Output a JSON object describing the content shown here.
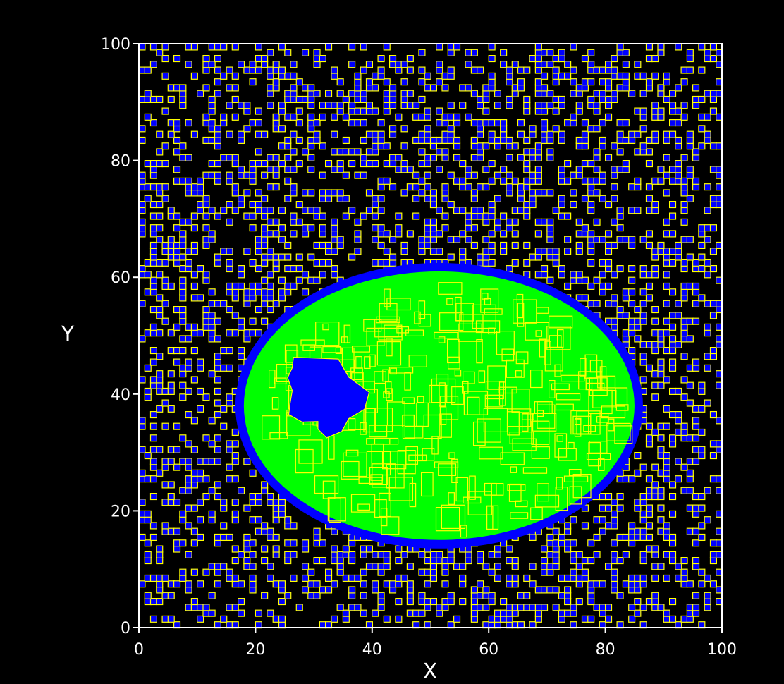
{
  "chart_data": {
    "type": "heatmap",
    "title": "",
    "xlabel": "X",
    "ylabel": "Y",
    "xlim": [
      0,
      100
    ],
    "ylim": [
      0,
      100
    ],
    "x_ticks": [
      "0",
      "20",
      "40",
      "60",
      "80",
      "100"
    ],
    "y_ticks": [
      "0",
      "20",
      "40",
      "60",
      "80",
      "100"
    ],
    "grid": false,
    "legend": "none",
    "colors": {
      "background": "#000000",
      "foreground": "#ffffff",
      "medium_cells": "#0000ff",
      "blob": "#00ff00",
      "cell_boundaries": "#ffff00"
    },
    "regions": [
      {
        "name": "blob",
        "color": "#00ff00",
        "shape": "ellipse",
        "center": [
          51.5,
          38
        ],
        "radius": [
          33.5,
          23
        ]
      },
      {
        "name": "blob-hole",
        "color": "#0000ff",
        "shape": "polygon",
        "points": [
          [
            26.5,
            46.3
          ],
          [
            34.2,
            46
          ],
          [
            36,
            42.9
          ],
          [
            39.5,
            40.3
          ],
          [
            38.7,
            37.4
          ],
          [
            36,
            35.8
          ],
          [
            34.8,
            33.6
          ],
          [
            32.2,
            32.5
          ],
          [
            30.7,
            34
          ],
          [
            30.7,
            35.3
          ],
          [
            28,
            35.2
          ],
          [
            25.7,
            36.5
          ],
          [
            25.9,
            38.2
          ],
          [
            26.3,
            40.6
          ],
          [
            25.5,
            42.8
          ],
          [
            26.3,
            44.5
          ]
        ]
      }
    ],
    "medium_cell_fraction": 0.3,
    "grid_resolution": 100
  }
}
